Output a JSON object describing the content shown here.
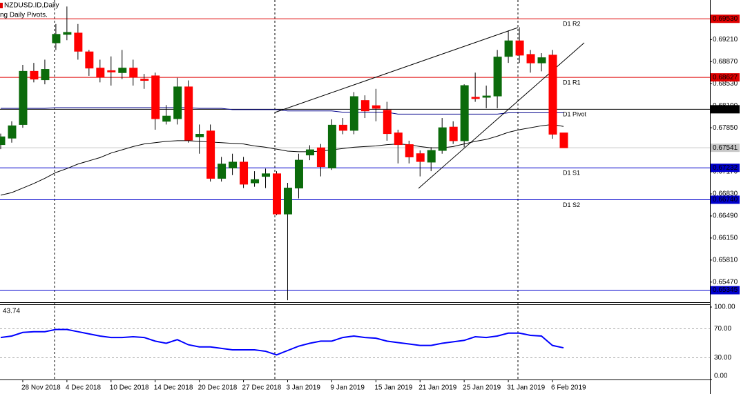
{
  "chart_data": {
    "type": "candlestick",
    "title": "NZDUSD.ID,Daily",
    "indicator_label": "ng Daily Pivots.",
    "categories": [
      null,
      null,
      "28 Nov 2018",
      null,
      null,
      null,
      "4 Dec 2018",
      null,
      null,
      null,
      "10 Dec 2018",
      null,
      null,
      null,
      "14 Dec 2018",
      null,
      null,
      null,
      "20 Dec 2018",
      null,
      null,
      null,
      "27 Dec 2018",
      null,
      null,
      null,
      "3 Jan 2019",
      null,
      null,
      null,
      "9 Jan 2019",
      null,
      null,
      null,
      "15 Jan 2019",
      null,
      null,
      null,
      "21 Jan 2019",
      null,
      null,
      null,
      "25 Jan 2019",
      null,
      null,
      null,
      "31 Jan 2019",
      null,
      null,
      null,
      "6 Feb 2019",
      null
    ],
    "open": [
      0.6759,
      0.6769,
      0.679,
      0.6872,
      0.6859,
      0.6916,
      0.6929,
      0.6931,
      0.6902,
      0.6877,
      0.6873,
      0.687,
      0.6877,
      0.686,
      0.6865,
      0.6795,
      0.6799,
      0.6848,
      0.6771,
      0.678,
      0.6707,
      0.6723,
      0.6732,
      0.67,
      0.671,
      0.6714,
      0.6652,
      0.6692,
      0.6743,
      0.6754,
      0.6723,
      0.6789,
      0.6781,
      0.6827,
      0.6819,
      0.6812,
      0.6777,
      0.6759,
      0.6745,
      0.6732,
      0.675,
      0.6786,
      0.6765,
      0.6832,
      0.6832,
      0.6834,
      0.6895,
      0.6919,
      0.6898,
      0.6885,
      0.6897,
      0.6777
    ],
    "high": [
      0.6776,
      0.6795,
      0.6882,
      0.6885,
      0.689,
      0.6945,
      0.6972,
      0.6945,
      0.6905,
      0.689,
      0.6895,
      0.6905,
      0.689,
      0.6868,
      0.687,
      0.682,
      0.6862,
      0.6858,
      0.679,
      0.679,
      0.674,
      0.6745,
      0.674,
      0.6718,
      0.6722,
      0.6718,
      0.67,
      0.6745,
      0.6758,
      0.676,
      0.6798,
      0.68,
      0.684,
      0.6835,
      0.6845,
      0.6825,
      0.6782,
      0.6765,
      0.675,
      0.6755,
      0.68,
      0.6795,
      0.6852,
      0.687,
      0.685,
      0.6905,
      0.6935,
      0.694,
      0.6905,
      0.69,
      0.6905,
      0.6777
    ],
    "low": [
      0.6752,
      0.6762,
      0.6785,
      0.6855,
      0.6852,
      0.6905,
      0.692,
      0.689,
      0.6865,
      0.6855,
      0.685,
      0.686,
      0.685,
      0.6845,
      0.6782,
      0.679,
      0.679,
      0.6762,
      0.6745,
      0.6702,
      0.6702,
      0.6712,
      0.6692,
      0.6694,
      0.6692,
      0.665,
      0.6519,
      0.6676,
      0.6735,
      0.671,
      0.672,
      0.6775,
      0.6775,
      0.68,
      0.6795,
      0.6765,
      0.673,
      0.673,
      0.671,
      0.6718,
      0.6745,
      0.676,
      0.6755,
      0.6825,
      0.6815,
      0.6815,
      0.6885,
      0.6885,
      0.687,
      0.6872,
      0.6768,
      0.6754
    ],
    "close": [
      0.6771,
      0.6788,
      0.6872,
      0.686,
      0.6875,
      0.6929,
      0.6932,
      0.6903,
      0.6877,
      0.6863,
      0.6871,
      0.6877,
      0.6863,
      0.6858,
      0.6799,
      0.6803,
      0.6848,
      0.6766,
      0.6775,
      0.6707,
      0.6729,
      0.6732,
      0.6698,
      0.6705,
      0.6714,
      0.6652,
      0.6692,
      0.6735,
      0.6751,
      0.6725,
      0.6789,
      0.6781,
      0.6833,
      0.6811,
      0.6815,
      0.6776,
      0.6759,
      0.674,
      0.6733,
      0.675,
      0.6785,
      0.6765,
      0.685,
      0.683,
      0.6834,
      0.6894,
      0.6919,
      0.6897,
      0.6885,
      0.6893,
      0.6775,
      0.67541
    ],
    "up_color": "#0b6b0b",
    "down_color": "#ff0000",
    "current_color": "#c8c8c8",
    "ylim": [
      0.6517,
      0.6982
    ],
    "yticks": [
      {
        "value": 0.6921,
        "label": "0.69210"
      },
      {
        "value": 0.6887,
        "label": "0.68870"
      },
      {
        "value": 0.6853,
        "label": "0.68530"
      },
      {
        "value": 0.6819,
        "label": "0.68190"
      },
      {
        "value": 0.6785,
        "label": "0.67850"
      },
      {
        "value": 0.6717,
        "label": "0.67170"
      },
      {
        "value": 0.6683,
        "label": "0.66830"
      },
      {
        "value": 0.6649,
        "label": "0.66490"
      },
      {
        "value": 0.6615,
        "label": "0.66150"
      },
      {
        "value": 0.6581,
        "label": "0.65810"
      },
      {
        "value": 0.6547,
        "label": "0.65470"
      }
    ],
    "overlays": [
      {
        "color": "#00008b",
        "values": [
          0.6815,
          0.6815,
          0.6815,
          0.6815,
          0.6815,
          0.6816,
          0.6816,
          0.6816,
          0.6816,
          0.6816,
          0.6816,
          0.6816,
          0.6816,
          0.6816,
          0.6816,
          0.6816,
          0.6816,
          0.6816,
          0.6815,
          0.6815,
          0.6815,
          0.6813,
          0.6813,
          0.6813,
          0.6813,
          0.6813,
          0.6811,
          0.6811,
          0.6811,
          0.6811,
          0.6811,
          0.6809,
          0.6809,
          0.6809,
          0.6809,
          0.6809,
          0.6806,
          0.6806,
          0.6806,
          0.6806,
          0.6806,
          0.6806,
          0.6806,
          0.6806,
          0.6806,
          0.6806,
          0.6808,
          0.6808,
          0.6808,
          0.6808,
          0.6808,
          0.6808
        ]
      },
      {
        "color": "#000000",
        "values": [
          0.6681,
          0.6685,
          0.6692,
          0.6699,
          0.6707,
          0.6716,
          0.6722,
          0.6729,
          0.6734,
          0.6739,
          0.6746,
          0.6751,
          0.6756,
          0.676,
          0.6762,
          0.6764,
          0.6765,
          0.6765,
          0.6764,
          0.6763,
          0.6762,
          0.6761,
          0.676,
          0.6757,
          0.6755,
          0.6752,
          0.6749,
          0.6748,
          0.6748,
          0.6749,
          0.6751,
          0.6753,
          0.6755,
          0.6756,
          0.6757,
          0.6759,
          0.676,
          0.6759,
          0.6756,
          0.6754,
          0.6754,
          0.6756,
          0.676,
          0.6764,
          0.6767,
          0.6772,
          0.6778,
          0.6782,
          0.6785,
          0.6788,
          0.679,
          0.6787
        ]
      }
    ],
    "levels": [
      {
        "name": "D1 R2",
        "value": 0.6953,
        "label": "0.69530",
        "color": "#e00000"
      },
      {
        "name": "D1 R1",
        "value": 0.68627,
        "label": "0.68627",
        "color": "#e00000"
      },
      {
        "name": "D1 Pivot",
        "value": 0.68135,
        "label": "0.68135",
        "color": "#000000"
      },
      {
        "name": "D1 S1",
        "value": 0.67232,
        "label": "0.67232",
        "color": "#0000cc"
      },
      {
        "name": "D1 S2",
        "value": 0.6674,
        "label": "0.66740",
        "color": "#0000cc"
      },
      {
        "value": 0.65345,
        "label": "0.65345",
        "color": "#0000cc"
      }
    ],
    "rsi": {
      "color": "#0000ff",
      "values": [
        58,
        60,
        65,
        66,
        66,
        69,
        69,
        66,
        63,
        60,
        58,
        58,
        59,
        58,
        53,
        50,
        55,
        48,
        45,
        45,
        43,
        41,
        41,
        41,
        39,
        34,
        40,
        46,
        50,
        53,
        53,
        58,
        60,
        58,
        57,
        53,
        51,
        49,
        47,
        47,
        50,
        52,
        54,
        59,
        58,
        60,
        64,
        64,
        61,
        60,
        47,
        43.74
      ],
      "ylim": [
        0,
        100
      ],
      "yticks": [
        {
          "value": 100,
          "label": "100.00"
        },
        {
          "value": 70,
          "label": "70.00"
        },
        {
          "value": 30,
          "label": "30.00"
        },
        {
          "value": 0,
          "label": "0.00"
        }
      ]
    }
  }
}
